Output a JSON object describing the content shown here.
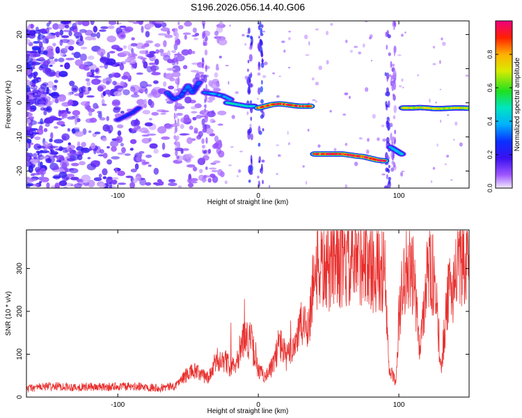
{
  "title": "S196.2026.056.14.40.G06",
  "chart_data": [
    {
      "type": "heatmap",
      "name": "spectrogram",
      "xlabel": "Height of straight line (km)",
      "ylabel": "Frequency (Hz)",
      "xlim": [
        -165,
        150
      ],
      "ylim": [
        -25,
        24
      ],
      "xticks": [
        -100,
        0,
        100
      ],
      "yticks": [
        -20,
        -10,
        0,
        10,
        20
      ],
      "colorbar": {
        "label": "Normalized spectral amplitude",
        "range": [
          0,
          1
        ],
        "ticks": [
          0.0,
          0.2,
          0.4,
          0.6,
          0.8
        ]
      },
      "tracks": [
        {
          "x": [
            -100,
            -95,
            -90,
            -85
          ],
          "freq": [
            -5,
            -4,
            -3,
            -1.5
          ],
          "amplitude": 0.25
        },
        {
          "x": [
            -65,
            -60,
            -55,
            -50,
            -47,
            -42
          ],
          "freq": [
            3,
            1,
            2,
            5,
            3,
            6
          ],
          "amplitude": 0.3
        },
        {
          "x": [
            -38,
            -30,
            -25,
            -20
          ],
          "freq": [
            3,
            2.5,
            2,
            1
          ],
          "amplitude": 0.35
        },
        {
          "x": [
            -22,
            -15,
            -8,
            -3
          ],
          "freq": [
            0,
            -0.5,
            -1,
            -1
          ],
          "amplitude": 0.45
        },
        {
          "x": [
            0,
            5,
            10,
            15,
            20,
            25,
            30,
            37
          ],
          "freq": [
            -1.5,
            -1,
            -0.5,
            -0.3,
            -0.5,
            -0.8,
            -1,
            -1
          ],
          "amplitude": 0.9
        },
        {
          "x": [
            40,
            45,
            50,
            55,
            60,
            65,
            70,
            75,
            80,
            85,
            90
          ],
          "freq": [
            -15,
            -15,
            -15,
            -15,
            -15,
            -15.3,
            -15.6,
            -15.8,
            -16.3,
            -16.8,
            -17
          ],
          "amplitude": 0.95
        },
        {
          "x": [
            94,
            96,
            98,
            100,
            102
          ],
          "freq": [
            -13,
            -13.5,
            -14,
            -14.5,
            -15
          ],
          "amplitude": 0.4
        },
        {
          "x": [
            103,
            110,
            115,
            120,
            125,
            130,
            135,
            140,
            145,
            150
          ],
          "freq": [
            -1.5,
            -1.5,
            -1.4,
            -1.5,
            -1.7,
            -1.7,
            -1.6,
            -1.5,
            -1.5,
            -1.6
          ],
          "amplitude": 0.7
        }
      ]
    },
    {
      "type": "line",
      "name": "snr",
      "xlabel": "Height of straight line (km)",
      "ylabel": "SNR (10 * v/v)",
      "xlim": [
        -165,
        150
      ],
      "ylim": [
        0,
        390
      ],
      "xticks": [
        -100,
        0,
        100
      ],
      "yticks": [
        0,
        100,
        200,
        300
      ],
      "series": [
        {
          "name": "SNR",
          "color": "#e8302e",
          "x": [
            -165,
            -160,
            -150,
            -140,
            -130,
            -120,
            -110,
            -100,
            -90,
            -80,
            -70,
            -60,
            -55,
            -50,
            -45,
            -40,
            -35,
            -30,
            -25,
            -20,
            -15,
            -10,
            -5,
            0,
            5,
            10,
            15,
            20,
            25,
            30,
            35,
            37,
            40,
            45,
            50,
            55,
            60,
            65,
            70,
            75,
            80,
            85,
            90,
            93,
            96,
            98,
            100,
            102,
            105,
            110,
            115,
            120,
            125,
            130,
            135,
            140,
            145,
            150
          ],
          "y": [
            20,
            22,
            25,
            25,
            23,
            24,
            23,
            25,
            24,
            24,
            22,
            25,
            40,
            55,
            60,
            50,
            45,
            85,
            90,
            70,
            90,
            140,
            130,
            60,
            50,
            70,
            130,
            90,
            120,
            165,
            165,
            200,
            300,
            305,
            290,
            340,
            300,
            310,
            310,
            330,
            300,
            300,
            290,
            60,
            50,
            30,
            180,
            240,
            300,
            290,
            110,
            300,
            280,
            70,
            230,
            280,
            320,
            340
          ]
        }
      ]
    }
  ]
}
